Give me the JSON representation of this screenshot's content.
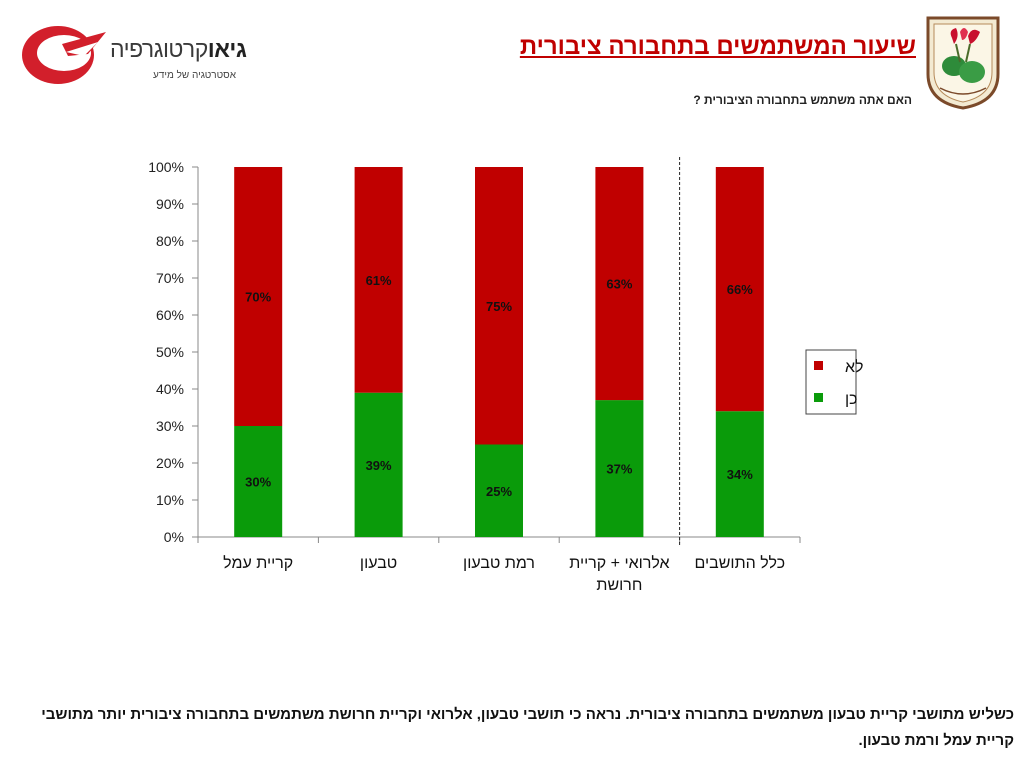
{
  "header": {
    "brand_name_bold": "גיאו",
    "brand_name_rest": "קרטוגרפיה",
    "brand_tagline": "אסטרטגיה של מידע",
    "title": "שיעור המשתמשים בתחבורה ציבורית",
    "question": "האם אתה משתמש בתחבורה הציבורית ?"
  },
  "colors": {
    "yes": "#0a9b0a",
    "no": "#c00000",
    "title": "#c00000"
  },
  "chart_data": {
    "type": "bar",
    "stacked": true,
    "categories": [
      "קריית עמל",
      "טבעון",
      "רמת טבעון",
      "אלרואי + קריית חרושת",
      "כלל התושבים"
    ],
    "series": [
      {
        "name": "כן",
        "values": [
          30,
          39,
          25,
          37,
          34
        ],
        "labels": [
          "30%",
          "39%",
          "25%",
          "37%",
          "34%"
        ]
      },
      {
        "name": "לא",
        "values": [
          70,
          61,
          75,
          63,
          66
        ],
        "labels": [
          "70%",
          "61%",
          "75%",
          "63%",
          "66%"
        ]
      }
    ],
    "y_ticks": [
      "0%",
      "10%",
      "20%",
      "30%",
      "40%",
      "50%",
      "60%",
      "70%",
      "80%",
      "90%",
      "100%"
    ],
    "ylim": [
      0,
      100
    ],
    "legend_position": "right",
    "grid": false,
    "separator_before_last": true
  },
  "summary": "כשליש מתושבי קריית טבעון משתמשים בתחבורה ציבורית. נראה כי תושבי טבעון, אלרואי וקריית חרושת משתמשים בתחבורה ציבורית יותר מתושבי קריית עמל ורמת טבעון."
}
